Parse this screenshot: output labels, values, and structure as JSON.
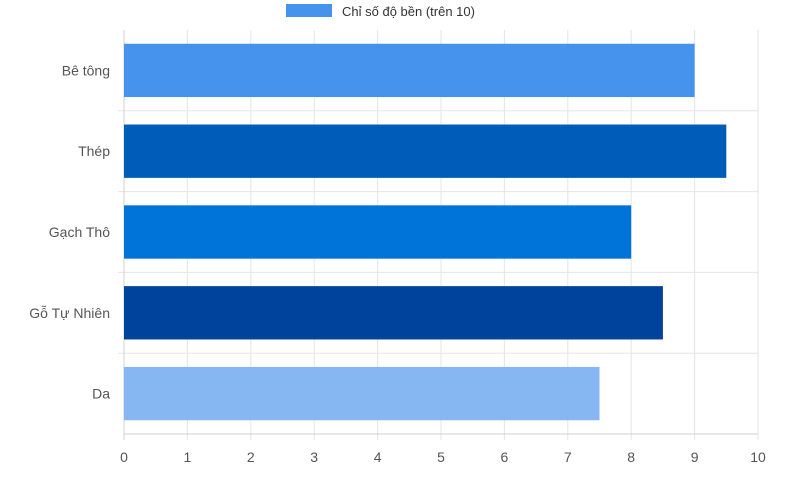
{
  "chart_data": {
    "type": "bar",
    "orientation": "horizontal",
    "categories": [
      "Bê tông",
      "Thép",
      "Gạch Thô",
      "Gỗ Tự Nhiên",
      "Da"
    ],
    "series": [
      {
        "name": "Chỉ số độ bền (trên 10)",
        "values": [
          9.0,
          9.5,
          8.0,
          8.5,
          7.5
        ],
        "legend_color": "#4593EC",
        "bar_colors": [
          "#4593EC",
          "#005CB9",
          "#0074D9",
          "#00439C",
          "#86B7F2"
        ]
      }
    ],
    "xlim": [
      0,
      10
    ],
    "x_ticks": [
      0,
      1,
      2,
      3,
      4,
      5,
      6,
      7,
      8,
      9,
      10
    ],
    "grid": true,
    "legend_position": "top-center",
    "title": "",
    "xlabel": "",
    "ylabel": ""
  }
}
